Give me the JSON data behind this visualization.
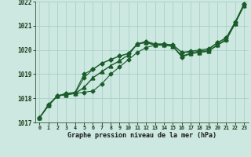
{
  "title": "Graphe pression niveau de la mer (hPa)",
  "background_color": "#cce8e0",
  "grid_color": "#aacfc8",
  "line_color": "#1a5c2a",
  "xlim": [
    -0.5,
    23.5
  ],
  "ylim": [
    1017,
    1022
  ],
  "xticks": [
    0,
    1,
    2,
    3,
    4,
    5,
    6,
    7,
    8,
    9,
    10,
    11,
    12,
    13,
    14,
    15,
    16,
    17,
    18,
    19,
    20,
    21,
    22,
    23
  ],
  "yticks": [
    1017,
    1018,
    1019,
    1020,
    1021,
    1022
  ],
  "series": [
    [
      1017.2,
      1017.7,
      1018.1,
      1018.15,
      1018.2,
      1018.25,
      1018.3,
      1018.6,
      1019.0,
      1019.3,
      1019.6,
      1019.9,
      1020.1,
      1020.2,
      1020.2,
      1020.15,
      1019.7,
      1019.85,
      1019.9,
      1019.95,
      1020.2,
      1020.4,
      1021.1,
      1021.85
    ],
    [
      1017.2,
      1017.7,
      1018.1,
      1018.15,
      1018.2,
      1018.45,
      1018.85,
      1019.1,
      1019.35,
      1019.55,
      1019.8,
      1020.25,
      1020.3,
      1020.2,
      1020.2,
      1020.15,
      1019.75,
      1019.85,
      1019.9,
      1019.95,
      1020.2,
      1020.45,
      1021.1,
      1021.85
    ],
    [
      1017.2,
      1017.7,
      1018.1,
      1018.2,
      1018.2,
      1018.85,
      1019.2,
      1019.45,
      1019.6,
      1019.75,
      1019.85,
      1020.25,
      1020.35,
      1020.2,
      1020.25,
      1020.2,
      1019.9,
      1019.9,
      1019.95,
      1020.0,
      1020.3,
      1020.5,
      1021.15,
      1021.9
    ],
    [
      1017.2,
      1017.75,
      1018.1,
      1018.2,
      1018.25,
      1019.0,
      1019.2,
      1019.45,
      1019.6,
      1019.75,
      1019.85,
      1020.25,
      1020.35,
      1020.25,
      1020.25,
      1020.2,
      1019.9,
      1019.95,
      1020.0,
      1020.05,
      1020.3,
      1020.5,
      1021.15,
      1021.9
    ]
  ],
  "markers": [
    "D",
    "^",
    "D",
    "D"
  ],
  "markersizes": [
    2.5,
    3.5,
    2.5,
    2.5
  ],
  "linewidths": [
    0.8,
    1.0,
    0.8,
    0.8
  ]
}
